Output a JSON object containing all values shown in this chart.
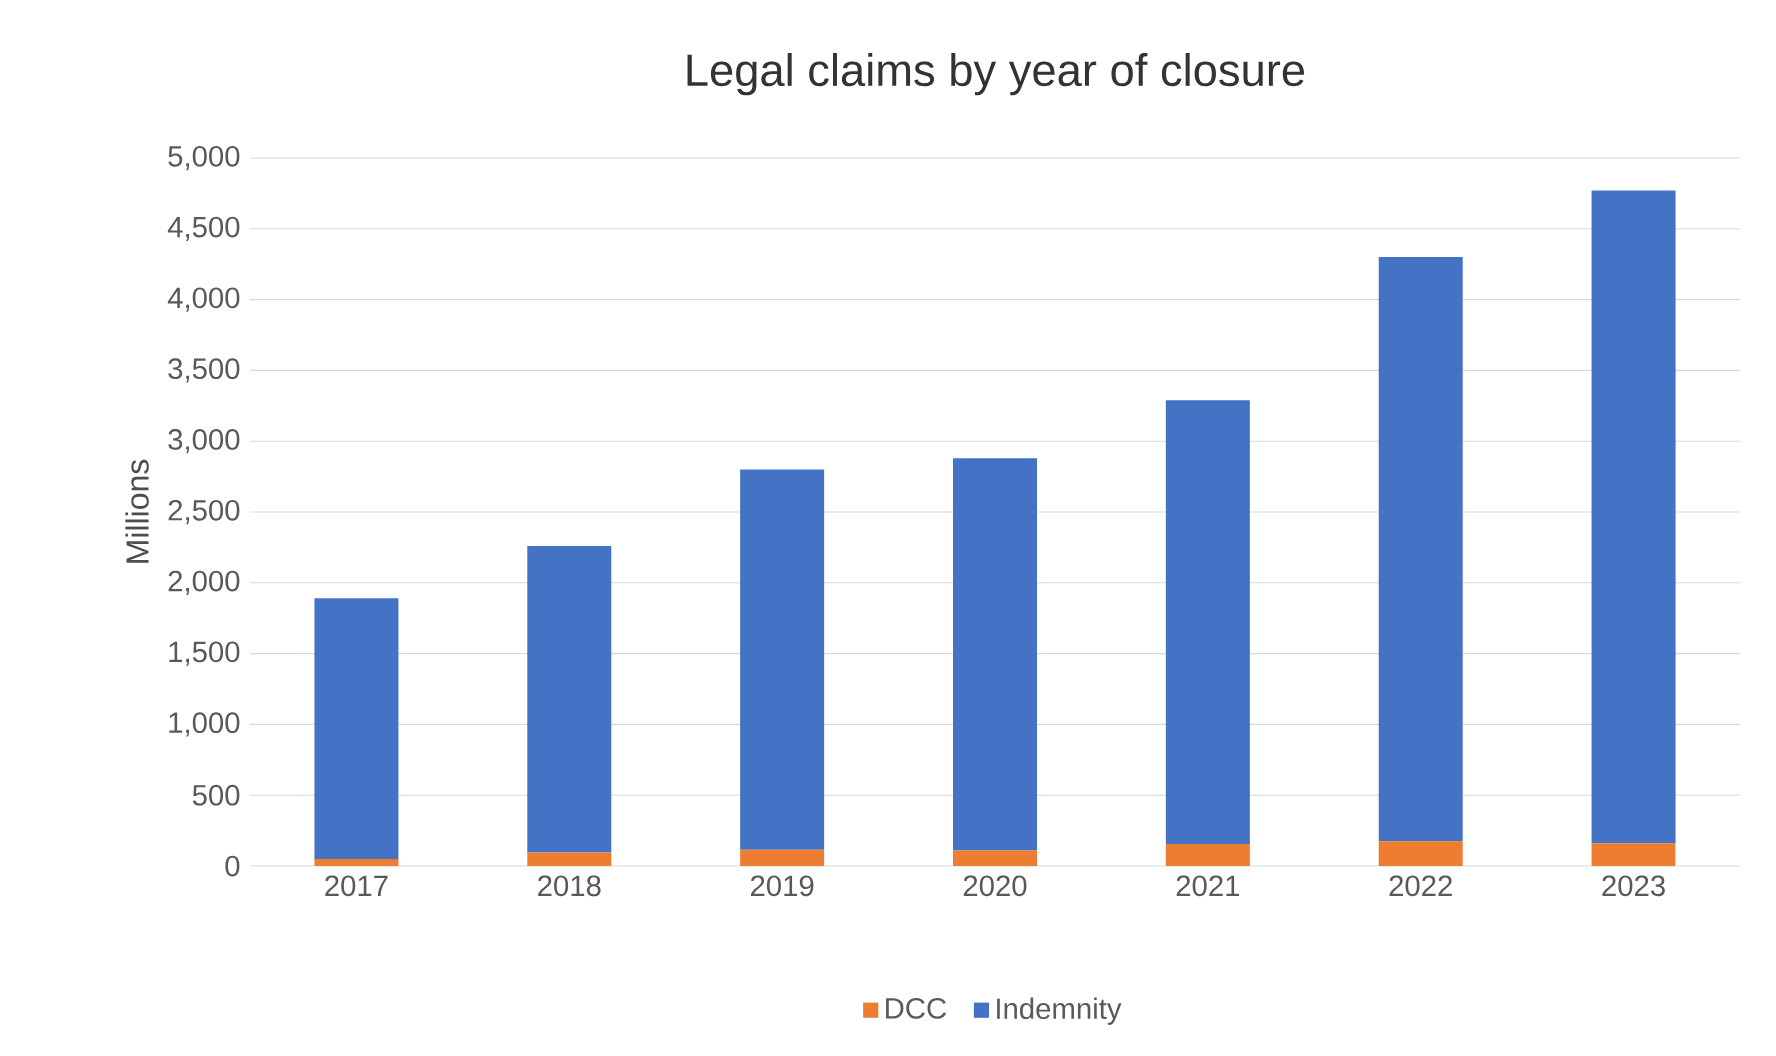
{
  "chart_data": {
    "type": "bar",
    "title": "Legal claims by year of closure",
    "ylabel": "Millions",
    "categories": [
      "2017",
      "2018",
      "2019",
      "2020",
      "2021",
      "2022",
      "2023"
    ],
    "stacked": true,
    "series": [
      {
        "name": "DCC",
        "color": "#ed7d31",
        "values": [
          50,
          95,
          115,
          110,
          155,
          175,
          160
        ]
      },
      {
        "name": "Indemnity",
        "color": "#4472c4",
        "values": [
          1840,
          2165,
          2685,
          2770,
          3135,
          4125,
          4610
        ]
      }
    ],
    "ylim": [
      0,
      5000
    ],
    "yticks": [
      {
        "value": 0,
        "label": "0"
      },
      {
        "value": 500,
        "label": "500"
      },
      {
        "value": 1000,
        "label": "1,000"
      },
      {
        "value": 1500,
        "label": "1,500"
      },
      {
        "value": 2000,
        "label": "2,000"
      },
      {
        "value": 2500,
        "label": "2,500"
      },
      {
        "value": 3000,
        "label": "3,000"
      },
      {
        "value": 3500,
        "label": "3,500"
      },
      {
        "value": 4000,
        "label": "4,000"
      },
      {
        "value": 4500,
        "label": "4,500"
      },
      {
        "value": 5000,
        "label": "5,000"
      }
    ],
    "grid": "y",
    "legend": "bottom"
  }
}
